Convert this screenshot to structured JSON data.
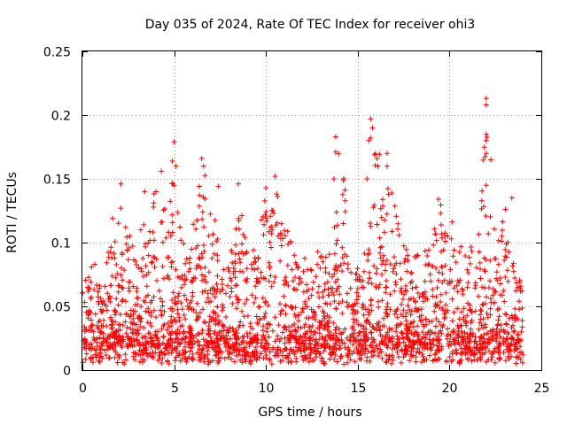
{
  "chart_data": {
    "type": "scatter",
    "title": "Day 035 of 2024, Rate Of TEC Index for receiver ohi3",
    "xlabel": "GPS time / hours",
    "ylabel": "ROTI / TECUs",
    "xlim": [
      0,
      25
    ],
    "ylim": [
      0,
      0.25
    ],
    "x_ticks": [
      0,
      5,
      10,
      15,
      20,
      25
    ],
    "x_tick_labels": [
      "0",
      "5",
      "10",
      "15",
      "20",
      "25"
    ],
    "y_ticks": [
      0,
      0.05,
      0.1,
      0.15,
      0.2,
      0.25
    ],
    "y_tick_labels": [
      "0",
      "0.05",
      "0.1",
      "0.15",
      "0.2",
      "0.25"
    ],
    "grid": true,
    "marker": "+",
    "series_color": "#ff0000",
    "envelope_note": "Dense scatter; envelope describes the approximate upper extent of ROTI values per hour",
    "envelope": {
      "hours": [
        0,
        0.5,
        1,
        1.5,
        2,
        2.5,
        3,
        3.5,
        4,
        4.5,
        5,
        5.5,
        6,
        6.5,
        7,
        7.5,
        8,
        8.5,
        9,
        9.5,
        10,
        10.5,
        11,
        11.5,
        12,
        12.5,
        13,
        13.5,
        14,
        14.5,
        15,
        15.5,
        16,
        16.5,
        17,
        17.5,
        18,
        18.5,
        19,
        19.5,
        20,
        20.5,
        21,
        21.5,
        22,
        22.5,
        23,
        23.5,
        24
      ],
      "upper": [
        0.06,
        0.09,
        0.07,
        0.11,
        0.14,
        0.12,
        0.1,
        0.13,
        0.15,
        0.14,
        0.17,
        0.1,
        0.11,
        0.16,
        0.14,
        0.09,
        0.08,
        0.14,
        0.09,
        0.1,
        0.14,
        0.15,
        0.12,
        0.1,
        0.09,
        0.08,
        0.1,
        0.09,
        0.18,
        0.12,
        0.08,
        0.1,
        0.19,
        0.16,
        0.13,
        0.1,
        0.09,
        0.09,
        0.1,
        0.13,
        0.12,
        0.11,
        0.1,
        0.09,
        0.21,
        0.12,
        0.13,
        0.09,
        0.07
      ],
      "baseline": 0.015
    },
    "peak_points": [
      {
        "x": 22.0,
        "y": 0.213
      },
      {
        "x": 22.0,
        "y": 0.208
      },
      {
        "x": 15.7,
        "y": 0.197
      },
      {
        "x": 15.8,
        "y": 0.19
      },
      {
        "x": 22.0,
        "y": 0.185
      },
      {
        "x": 22.0,
        "y": 0.18
      },
      {
        "x": 13.8,
        "y": 0.183
      },
      {
        "x": 15.7,
        "y": 0.182
      },
      {
        "x": 15.6,
        "y": 0.18
      },
      {
        "x": 5.0,
        "y": 0.179
      },
      {
        "x": 13.8,
        "y": 0.171
      },
      {
        "x": 22.0,
        "y": 0.17
      },
      {
        "x": 16.6,
        "y": 0.17
      },
      {
        "x": 6.5,
        "y": 0.166
      },
      {
        "x": 6.6,
        "y": 0.16
      },
      {
        "x": 5.1,
        "y": 0.16
      },
      {
        "x": 16.1,
        "y": 0.16
      },
      {
        "x": 16.6,
        "y": 0.16
      },
      {
        "x": 4.3,
        "y": 0.156
      },
      {
        "x": 10.5,
        "y": 0.152
      },
      {
        "x": 13.7,
        "y": 0.15
      },
      {
        "x": 15.5,
        "y": 0.15
      },
      {
        "x": 2.1,
        "y": 0.146
      },
      {
        "x": 8.5,
        "y": 0.146
      },
      {
        "x": 5.0,
        "y": 0.145
      },
      {
        "x": 7.4,
        "y": 0.144
      },
      {
        "x": 10.0,
        "y": 0.143
      },
      {
        "x": 22.0,
        "y": 0.145
      },
      {
        "x": 3.4,
        "y": 0.14
      },
      {
        "x": 23.4,
        "y": 0.135
      },
      {
        "x": 19.4,
        "y": 0.134
      }
    ]
  }
}
